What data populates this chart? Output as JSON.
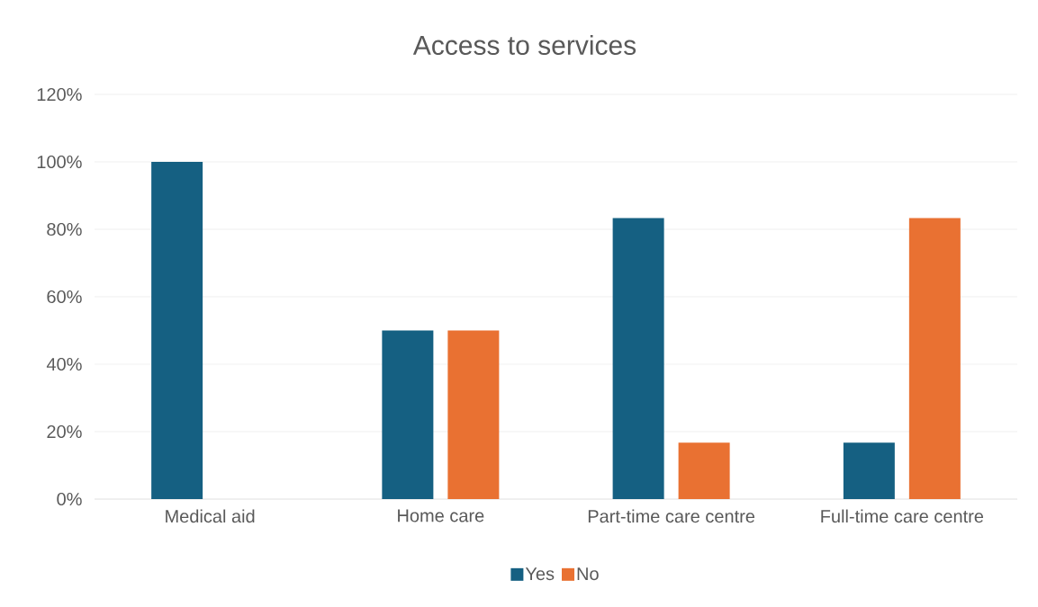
{
  "chart_data": {
    "type": "bar",
    "title": "Access to services",
    "categories": [
      "Medical aid",
      "Home care",
      "Part-time care centre",
      "Full-time care centre"
    ],
    "series": [
      {
        "name": "Yes",
        "color": "#156082",
        "values": [
          100,
          50,
          83.3,
          16.7
        ]
      },
      {
        "name": "No",
        "color": "#e97132",
        "values": [
          0,
          50,
          16.7,
          83.3
        ]
      }
    ],
    "ylim": [
      0,
      120
    ],
    "yticks": [
      {
        "value": 0,
        "label": "0%"
      },
      {
        "value": 20,
        "label": "20%"
      },
      {
        "value": 40,
        "label": "40%"
      },
      {
        "value": 60,
        "label": "60%"
      },
      {
        "value": 80,
        "label": "80%"
      },
      {
        "value": 100,
        "label": "100%"
      },
      {
        "value": 120,
        "label": "120%"
      }
    ],
    "grid": "y",
    "legend": "bottom"
  }
}
